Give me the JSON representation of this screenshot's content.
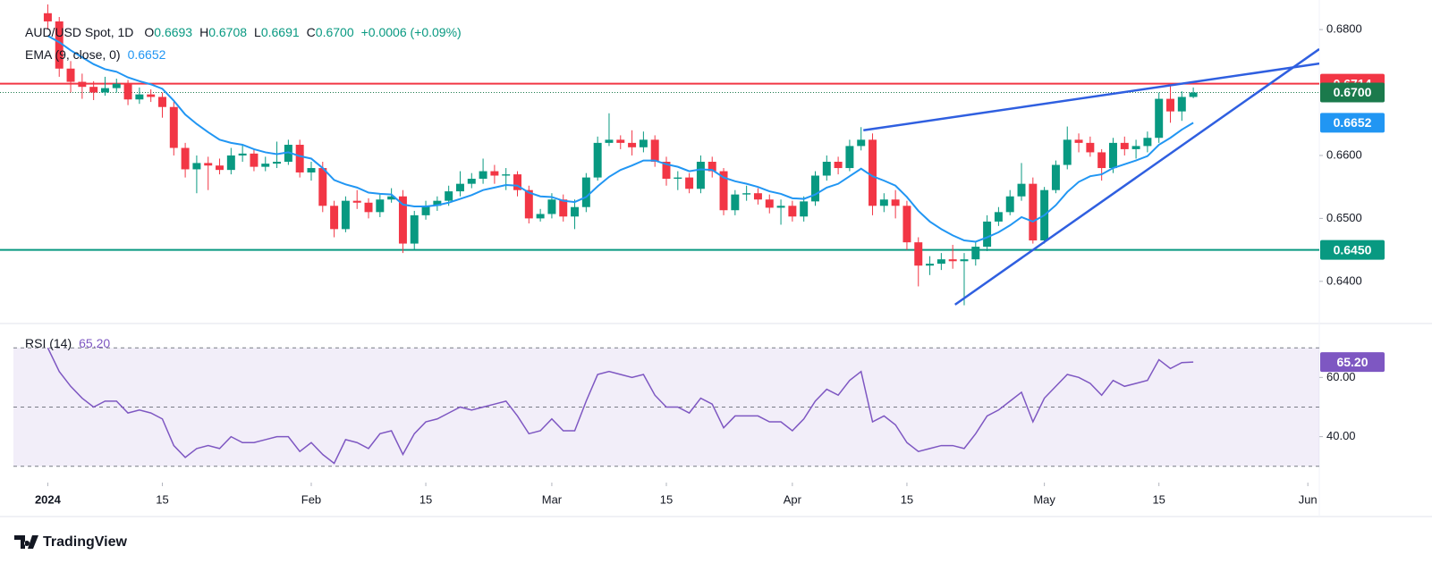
{
  "chart_data": [
    {
      "type": "candlestick",
      "title": "AUD/USD Spot, 1D",
      "ohlc_legend": [
        {
          "key": "O",
          "value": "0.6693"
        },
        {
          "key": "H",
          "value": "0.6708"
        },
        {
          "key": "L",
          "value": "0.6691"
        },
        {
          "key": "C",
          "value": "0.6700"
        }
      ],
      "change": "+0.0006 (+0.09%)",
      "up_color": "#089981",
      "down_color": "#f23645",
      "open": [
        0.6826,
        0.6813,
        0.6738,
        0.6717,
        0.6709,
        0.67,
        0.6707,
        0.6714,
        0.6689,
        0.6697,
        0.6693,
        0.6677,
        0.6612,
        0.6578,
        0.6588,
        0.6584,
        0.6577,
        0.66,
        0.6603,
        0.6582,
        0.6587,
        0.659,
        0.6617,
        0.6573,
        0.658,
        0.652,
        0.6483,
        0.6528,
        0.6525,
        0.651,
        0.653,
        0.6535,
        0.646,
        0.6505,
        0.652,
        0.6528,
        0.6543,
        0.6555,
        0.6563,
        0.6575,
        0.6568,
        0.657,
        0.6545,
        0.65,
        0.6507,
        0.653,
        0.6503,
        0.6518,
        0.6565,
        0.662,
        0.6625,
        0.662,
        0.6613,
        0.6625,
        0.659,
        0.6563,
        0.6565,
        0.6547,
        0.659,
        0.6575,
        0.6513,
        0.6538,
        0.654,
        0.653,
        0.6517,
        0.652,
        0.6503,
        0.6527,
        0.6568,
        0.659,
        0.658,
        0.6615,
        0.6625,
        0.652,
        0.653,
        0.652,
        0.6462,
        0.6425,
        0.6428,
        0.6435,
        0.6432,
        0.6435,
        0.6455,
        0.6495,
        0.651,
        0.6535,
        0.6555,
        0.6465,
        0.6545,
        0.6585,
        0.6625,
        0.662,
        0.6605,
        0.658,
        0.662,
        0.661,
        0.6615,
        0.6628,
        0.669,
        0.667,
        0.6693
      ],
      "high": [
        0.684,
        0.682,
        0.675,
        0.673,
        0.6718,
        0.6725,
        0.6722,
        0.672,
        0.6708,
        0.6705,
        0.67,
        0.6685,
        0.662,
        0.66,
        0.6598,
        0.6595,
        0.6612,
        0.6618,
        0.661,
        0.6598,
        0.6622,
        0.6625,
        0.6625,
        0.659,
        0.659,
        0.6528,
        0.6535,
        0.6545,
        0.6532,
        0.654,
        0.6548,
        0.6545,
        0.6512,
        0.6528,
        0.6535,
        0.6552,
        0.6575,
        0.6572,
        0.6595,
        0.6585,
        0.658,
        0.6575,
        0.6552,
        0.6515,
        0.654,
        0.6538,
        0.653,
        0.6572,
        0.663,
        0.6667,
        0.6632,
        0.664,
        0.6638,
        0.6632,
        0.6598,
        0.6575,
        0.6572,
        0.66,
        0.6598,
        0.658,
        0.6545,
        0.6552,
        0.6548,
        0.6538,
        0.653,
        0.6528,
        0.6535,
        0.6575,
        0.66,
        0.6598,
        0.6625,
        0.6645,
        0.6635,
        0.654,
        0.6545,
        0.6528,
        0.647,
        0.644,
        0.6445,
        0.6458,
        0.6445,
        0.6462,
        0.6505,
        0.6518,
        0.6545,
        0.6588,
        0.6565,
        0.655,
        0.6592,
        0.6646,
        0.6635,
        0.663,
        0.661,
        0.6628,
        0.663,
        0.6625,
        0.6638,
        0.67,
        0.6714,
        0.6702,
        0.6708
      ],
      "low": [
        0.68,
        0.6725,
        0.67,
        0.669,
        0.6688,
        0.6695,
        0.67,
        0.668,
        0.6682,
        0.6685,
        0.666,
        0.66,
        0.6565,
        0.654,
        0.6545,
        0.657,
        0.657,
        0.659,
        0.6575,
        0.6575,
        0.658,
        0.6585,
        0.6565,
        0.656,
        0.651,
        0.647,
        0.6478,
        0.6515,
        0.65,
        0.6502,
        0.6525,
        0.6445,
        0.645,
        0.6498,
        0.6512,
        0.652,
        0.6535,
        0.6548,
        0.6555,
        0.6555,
        0.6545,
        0.6535,
        0.6492,
        0.6495,
        0.65,
        0.6495,
        0.6483,
        0.651,
        0.656,
        0.6615,
        0.661,
        0.66,
        0.6605,
        0.6582,
        0.6552,
        0.6545,
        0.654,
        0.654,
        0.6565,
        0.6505,
        0.6505,
        0.6528,
        0.6522,
        0.6508,
        0.649,
        0.6495,
        0.6495,
        0.652,
        0.656,
        0.657,
        0.6575,
        0.6608,
        0.6505,
        0.651,
        0.65,
        0.645,
        0.6392,
        0.641,
        0.6418,
        0.642,
        0.6362,
        0.6425,
        0.6448,
        0.6488,
        0.6505,
        0.6528,
        0.646,
        0.646,
        0.654,
        0.6578,
        0.6605,
        0.6598,
        0.656,
        0.6572,
        0.66,
        0.6595,
        0.6605,
        0.662,
        0.6652,
        0.6655,
        0.6691
      ],
      "close": [
        0.6813,
        0.6738,
        0.6717,
        0.6709,
        0.67,
        0.6707,
        0.6714,
        0.6689,
        0.6697,
        0.6693,
        0.6677,
        0.6612,
        0.6578,
        0.6588,
        0.6584,
        0.6577,
        0.66,
        0.6603,
        0.6582,
        0.6587,
        0.659,
        0.6617,
        0.6573,
        0.658,
        0.652,
        0.6483,
        0.6528,
        0.6525,
        0.651,
        0.653,
        0.6535,
        0.646,
        0.6505,
        0.652,
        0.6528,
        0.6543,
        0.6555,
        0.6563,
        0.6575,
        0.6568,
        0.657,
        0.6545,
        0.65,
        0.6507,
        0.653,
        0.6503,
        0.6518,
        0.6565,
        0.662,
        0.6625,
        0.662,
        0.6613,
        0.6625,
        0.659,
        0.6563,
        0.6565,
        0.6547,
        0.659,
        0.6575,
        0.6513,
        0.6538,
        0.654,
        0.653,
        0.6517,
        0.652,
        0.6503,
        0.6527,
        0.6568,
        0.659,
        0.658,
        0.6615,
        0.6625,
        0.652,
        0.653,
        0.652,
        0.6462,
        0.6425,
        0.6428,
        0.6435,
        0.6432,
        0.6435,
        0.6455,
        0.6495,
        0.651,
        0.6535,
        0.6555,
        0.6465,
        0.6545,
        0.6585,
        0.6625,
        0.662,
        0.6605,
        0.658,
        0.662,
        0.661,
        0.6615,
        0.6628,
        0.669,
        0.667,
        0.6693,
        0.67
      ],
      "overlays": [
        {
          "name": "EMA (9, close, 0)",
          "value_label": "0.6652",
          "color": "#2196f3",
          "values": [
            0.679,
            0.678,
            0.6767,
            0.6756,
            0.6745,
            0.6737,
            0.6733,
            0.6724,
            0.6718,
            0.6713,
            0.6706,
            0.6687,
            0.6665,
            0.665,
            0.6637,
            0.6625,
            0.662,
            0.6617,
            0.661,
            0.6605,
            0.6602,
            0.6605,
            0.6599,
            0.6595,
            0.658,
            0.6561,
            0.6554,
            0.6549,
            0.6541,
            0.6539,
            0.6538,
            0.6522,
            0.6519,
            0.6519,
            0.6521,
            0.6525,
            0.6531,
            0.6537,
            0.6545,
            0.6549,
            0.6553,
            0.6552,
            0.6541,
            0.6535,
            0.6534,
            0.6528,
            0.6526,
            0.6534,
            0.6551,
            0.6566,
            0.6577,
            0.6584,
            0.6592,
            0.6592,
            0.6586,
            0.6582,
            0.6575,
            0.6578,
            0.6577,
            0.6565,
            0.6559,
            0.6555,
            0.655,
            0.6543,
            0.6539,
            0.6532,
            0.6531,
            0.6538,
            0.6549,
            0.6555,
            0.6567,
            0.6579,
            0.6567,
            0.656,
            0.6552,
            0.6534,
            0.6512,
            0.6495,
            0.6483,
            0.6473,
            0.6465,
            0.6463,
            0.647,
            0.6478,
            0.6489,
            0.6502,
            0.6495,
            0.6505,
            0.6521,
            0.6542,
            0.6558,
            0.6567,
            0.657,
            0.658,
            0.6586,
            0.6592,
            0.6599,
            0.6617,
            0.6628,
            0.6641,
            0.6652
          ]
        }
      ],
      "hlines": [
        {
          "value": 0.6714,
          "label": "0.6714",
          "color": "#f23645"
        },
        {
          "value": 0.645,
          "label": "0.6450",
          "color": "#089981"
        }
      ],
      "last_price": {
        "value": 0.67,
        "label": "0.6700",
        "color": "#1b7a4c"
      },
      "trendlines": [
        {
          "x": [
            71.2,
            111
          ],
          "y": [
            0.664,
            0.6746
          ],
          "color": "#2f5fe0"
        },
        {
          "x": [
            79.2,
            111
          ],
          "y": [
            0.6363,
            0.6769
          ],
          "color": "#2f5fe0"
        }
      ],
      "xlim": [
        -3,
        111
      ],
      "xticks": [
        {
          "value": 0,
          "label": "2024"
        },
        {
          "value": 10,
          "label": "15"
        },
        {
          "value": 23,
          "label": "Feb"
        },
        {
          "value": 33,
          "label": "15"
        },
        {
          "value": 44,
          "label": "Mar"
        },
        {
          "value": 54,
          "label": "15"
        },
        {
          "value": 65,
          "label": "Apr"
        },
        {
          "value": 75,
          "label": "15"
        },
        {
          "value": 87,
          "label": "May"
        },
        {
          "value": 97,
          "label": "15"
        },
        {
          "value": 110,
          "label": "Jun"
        }
      ],
      "ylim": [
        0.6333,
        0.6847
      ],
      "yticks": [
        {
          "value": 0.64,
          "label": "0.6400"
        },
        {
          "value": 0.65,
          "label": "0.6500"
        },
        {
          "value": 0.66,
          "label": "0.6600"
        },
        {
          "value": 0.68,
          "label": "0.6800"
        }
      ]
    },
    {
      "type": "line",
      "title": "RSI (14)",
      "value_label": "65.20",
      "color": "#7e57c2",
      "values": [
        70,
        62,
        57,
        53,
        50,
        52,
        52,
        48,
        49,
        48,
        46,
        37,
        33,
        36,
        37,
        36,
        40,
        38,
        38,
        39,
        40,
        40,
        35,
        38,
        34,
        31,
        39,
        38,
        36,
        41,
        42,
        34,
        41,
        45,
        46,
        48,
        50,
        49,
        50,
        51,
        52,
        47,
        41,
        42,
        46,
        42,
        42,
        52,
        61,
        62,
        61,
        60,
        61,
        54,
        50,
        50,
        48,
        53,
        51,
        43,
        47,
        47,
        47,
        45,
        45,
        42,
        46,
        52,
        56,
        54,
        59,
        62,
        45,
        47,
        44,
        38,
        35,
        36,
        37,
        37,
        36,
        41,
        47,
        49,
        52,
        55,
        45,
        53,
        57,
        61,
        60,
        58,
        54,
        59,
        57,
        58,
        59,
        66,
        63,
        65,
        65.2
      ],
      "levels": [
        30,
        50,
        70
      ],
      "xlim": [
        -3,
        111
      ],
      "ylim": [
        24.5,
        77.6
      ],
      "yticks": [
        {
          "value": 60,
          "label": "60.00"
        },
        {
          "value": 40,
          "label": "40.00"
        }
      ]
    }
  ],
  "branding": "TradingView"
}
